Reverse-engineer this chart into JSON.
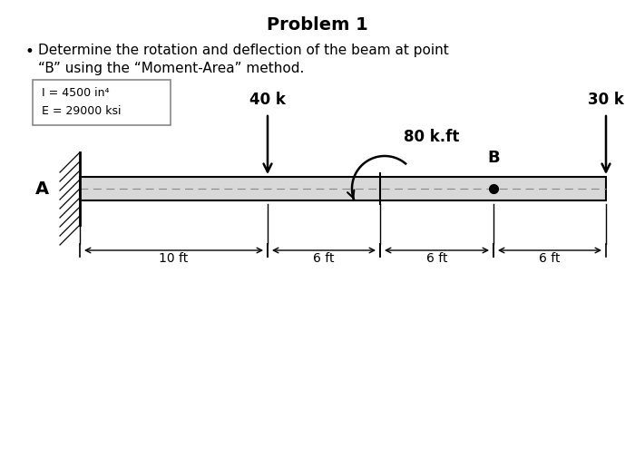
{
  "title": "Problem 1",
  "bullet_line1": "Determine the rotation and deflection of the beam at point",
  "bullet_line2": "“B” using the “Moment-Area” method.",
  "box_line1": "I = 4500 in⁴",
  "box_line2": "E = 29000 ksi",
  "label_40k": "40 k",
  "label_30k": "30 k",
  "label_80kft": "80 k.ft",
  "label_B": "B",
  "label_A": "A",
  "dim_10ft": "10 ft",
  "dim_6ft_1": "6 ft",
  "dim_6ft_2": "6 ft",
  "dim_6ft_3": "6 ft",
  "background_color": "#ffffff",
  "fig_width": 7.0,
  "fig_height": 5.16,
  "dpi": 100
}
